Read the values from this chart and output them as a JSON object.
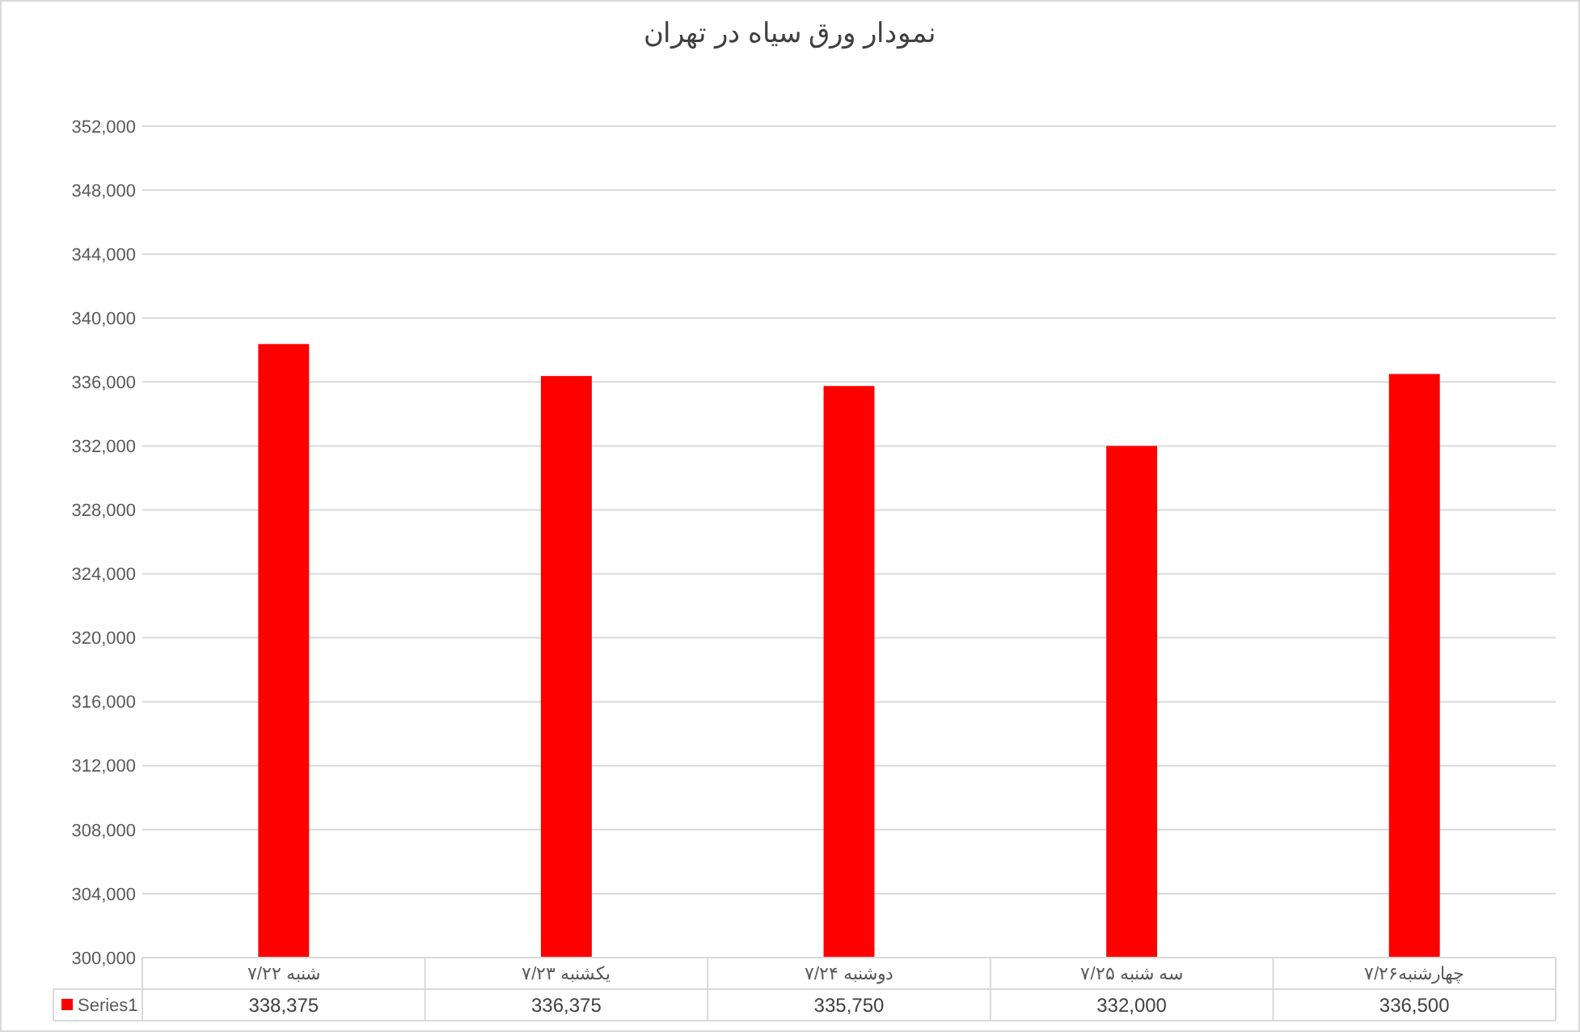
{
  "chart_data": {
    "type": "bar",
    "title": "نمودار ورق سیاه در تهران",
    "categories": [
      "شنبه ۷/۲۲",
      "یکشنبه ۷/۲۳",
      "دوشنبه ۷/۲۴",
      "سه شنبه ۷/۲۵",
      "چهارشنبه۷/۲۶"
    ],
    "series": [
      {
        "name": "Series1",
        "color": "#ff0000",
        "values": [
          338375,
          336375,
          335750,
          332000,
          336500
        ],
        "value_labels": [
          "338,375",
          "336,375",
          "335,750",
          "332,000",
          "336,500"
        ]
      }
    ],
    "ylim": [
      300000,
      352000
    ],
    "yticks": [
      {
        "value": 300000,
        "label": "300,000"
      },
      {
        "value": 304000,
        "label": "304,000"
      },
      {
        "value": 308000,
        "label": "308,000"
      },
      {
        "value": 312000,
        "label": "312,000"
      },
      {
        "value": 316000,
        "label": "316,000"
      },
      {
        "value": 320000,
        "label": "320,000"
      },
      {
        "value": 324000,
        "label": "324,000"
      },
      {
        "value": 328000,
        "label": "328,000"
      },
      {
        "value": 332000,
        "label": "332,000"
      },
      {
        "value": 336000,
        "label": "336,000"
      },
      {
        "value": 340000,
        "label": "340,000"
      },
      {
        "value": 344000,
        "label": "344,000"
      },
      {
        "value": 348000,
        "label": "348,000"
      },
      {
        "value": 352000,
        "label": "352,000"
      }
    ],
    "grid": "y",
    "legend": "bottom"
  }
}
